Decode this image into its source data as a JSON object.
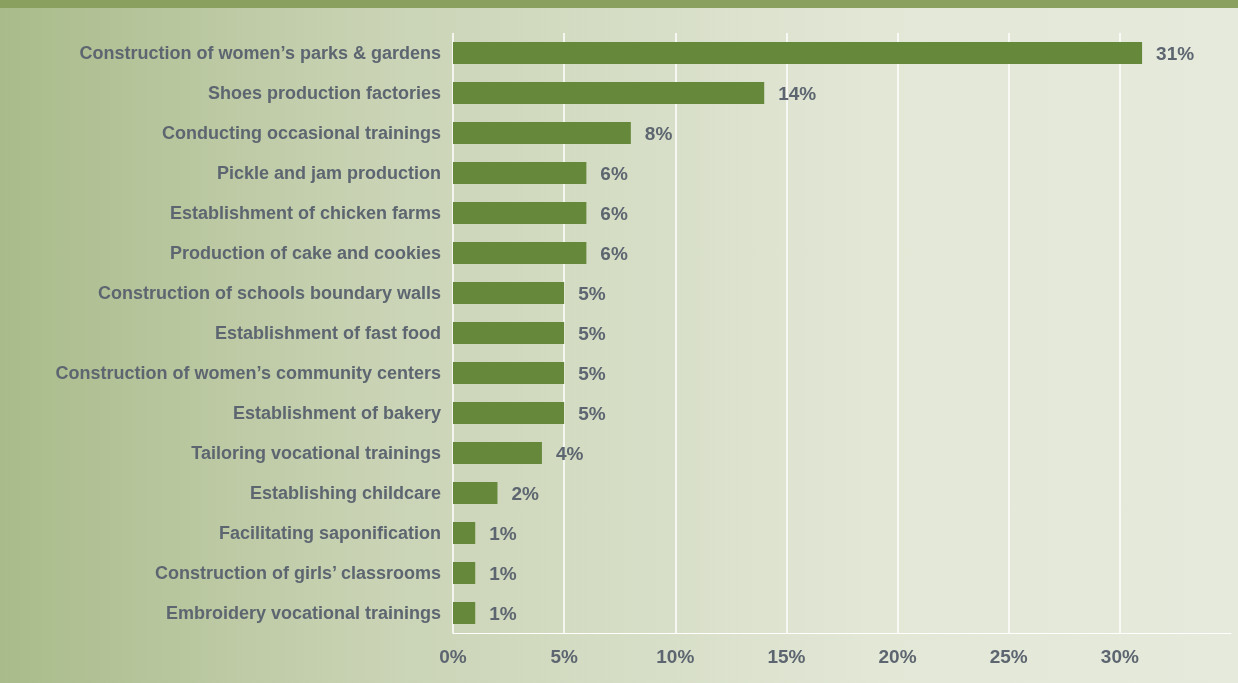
{
  "chart_data": {
    "type": "bar",
    "orientation": "horizontal",
    "categories": [
      "Construction of women’s parks & gardens",
      "Shoes production factories",
      "Conducting occasional trainings",
      "Pickle and jam production",
      "Establishment of chicken farms",
      "Production of cake and cookies",
      "Construction of schools boundary walls",
      "Establishment of fast food",
      "Construction of women’s community centers",
      "Establishment of bakery",
      "Tailoring vocational trainings",
      "Establishing childcare",
      "Facilitating saponification",
      "Construction of girls’ classrooms",
      "Embroidery vocational trainings"
    ],
    "values": [
      31,
      14,
      8,
      6,
      6,
      6,
      5,
      5,
      5,
      5,
      4,
      2,
      1,
      1,
      1
    ],
    "value_labels": [
      "31%",
      "14%",
      "8%",
      "6%",
      "6%",
      "6%",
      "5%",
      "5%",
      "5%",
      "5%",
      "4%",
      "2%",
      "1%",
      "1%",
      "1%"
    ],
    "color": "#66883a",
    "xlim": [
      0,
      35
    ],
    "xticks": [
      {
        "value": 0,
        "label": "0%"
      },
      {
        "value": 5,
        "label": "5%"
      },
      {
        "value": 10,
        "label": "10%"
      },
      {
        "value": 15,
        "label": "15%"
      },
      {
        "value": 20,
        "label": "20%"
      },
      {
        "value": 25,
        "label": "25%"
      },
      {
        "value": 30,
        "label": "30%"
      }
    ],
    "grid": "x"
  }
}
